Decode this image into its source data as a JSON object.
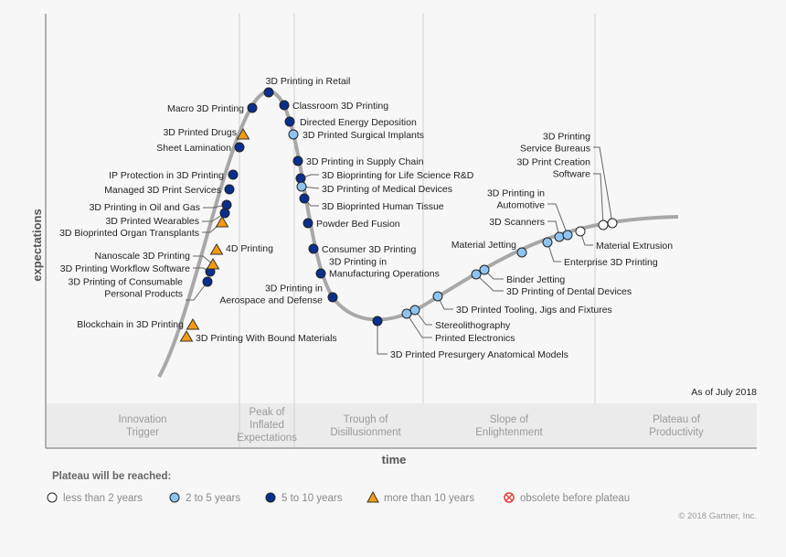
{
  "axis": {
    "y_label": "expectations",
    "x_label": "time"
  },
  "as_of": "As of July 2018",
  "phases": [
    {
      "lines": [
        "Innovation",
        "Trigger"
      ]
    },
    {
      "lines": [
        "Peak of",
        "Inflated",
        "Expectations"
      ]
    },
    {
      "lines": [
        "Trough of",
        "Disillusionment"
      ]
    },
    {
      "lines": [
        "Slope of",
        "Enlightenment"
      ]
    },
    {
      "lines": [
        "Plateau of",
        "Productivity"
      ]
    }
  ],
  "legend": {
    "title": "Plateau will be reached:",
    "items": [
      {
        "label": "less than 2 years",
        "icon": "white-circle"
      },
      {
        "label": "2 to 5 years",
        "icon": "light-blue-circle"
      },
      {
        "label": "5 to 10 years",
        "icon": "dark-blue-circle"
      },
      {
        "label": "more than 10 years",
        "icon": "orange-triangle"
      },
      {
        "label": "obsolete before plateau",
        "icon": "red-x-circle"
      }
    ]
  },
  "copyright": "© 2018 Gartner, Inc.",
  "colors": {
    "lt2": "#ffffff",
    "2to5": "#8fc4f2",
    "5to10": "#0a2f8c",
    "gt10": "#f39c12",
    "obsolete": "#e53935",
    "curve": "#9a9a9a"
  },
  "points": [
    {
      "lines": [
        "3D Printing With Bound Materials"
      ],
      "cat": "gt10"
    },
    {
      "lines": [
        "Blockchain in 3D Printing"
      ],
      "cat": "gt10"
    },
    {
      "lines": [
        "3D Printing of Consumable",
        "Personal Products"
      ],
      "cat": "5to10"
    },
    {
      "lines": [
        "3D Printing Workflow Software"
      ],
      "cat": "5to10"
    },
    {
      "lines": [
        "Nanoscale 3D Printing"
      ],
      "cat": "gt10"
    },
    {
      "lines": [
        "4D Printing"
      ],
      "cat": "gt10"
    },
    {
      "lines": [
        "3D Bioprinted Organ Transplants"
      ],
      "cat": "gt10"
    },
    {
      "lines": [
        "3D Printed Wearables"
      ],
      "cat": "5to10"
    },
    {
      "lines": [
        "3D Printing in Oil and Gas"
      ],
      "cat": "5to10"
    },
    {
      "lines": [
        "Managed 3D Print Services"
      ],
      "cat": "5to10"
    },
    {
      "lines": [
        "IP Protection in 3D Printing"
      ],
      "cat": "5to10"
    },
    {
      "lines": [
        "Sheet Lamination"
      ],
      "cat": "5to10"
    },
    {
      "lines": [
        "3D Printed Drugs"
      ],
      "cat": "gt10"
    },
    {
      "lines": [
        "Macro 3D Printing"
      ],
      "cat": "5to10"
    },
    {
      "lines": [
        "3D Printing in Retail"
      ],
      "cat": "5to10"
    },
    {
      "lines": [
        "Classroom 3D Printing"
      ],
      "cat": "5to10"
    },
    {
      "lines": [
        "Directed Energy Deposition"
      ],
      "cat": "5to10"
    },
    {
      "lines": [
        "3D Printed Surgical Implants"
      ],
      "cat": "2to5"
    },
    {
      "lines": [
        "3D Printing in Supply Chain"
      ],
      "cat": "5to10"
    },
    {
      "lines": [
        "3D Bioprinting for Life Science R&D"
      ],
      "cat": "5to10"
    },
    {
      "lines": [
        "3D Printing of Medical Devices"
      ],
      "cat": "2to5"
    },
    {
      "lines": [
        "3D Bioprinted Human Tissue"
      ],
      "cat": "5to10"
    },
    {
      "lines": [
        "Powder Bed Fusion"
      ],
      "cat": "5to10"
    },
    {
      "lines": [
        "Consumer 3D Printing"
      ],
      "cat": "5to10"
    },
    {
      "lines": [
        "3D Printing in",
        "Manufacturing Operations"
      ],
      "cat": "5to10"
    },
    {
      "lines": [
        "3D Printing in",
        "Aerospace and Defense"
      ],
      "cat": "5to10"
    },
    {
      "lines": [
        "3D Printed Presurgery Anatomical Models"
      ],
      "cat": "5to10"
    },
    {
      "lines": [
        "Printed Electronics"
      ],
      "cat": "2to5"
    },
    {
      "lines": [
        "Stereolithography"
      ],
      "cat": "2to5"
    },
    {
      "lines": [
        "3D Printed Tooling, Jigs and Fixtures"
      ],
      "cat": "2to5"
    },
    {
      "lines": [
        "3D Printing of Dental Devices"
      ],
      "cat": "2to5"
    },
    {
      "lines": [
        "Binder Jetting"
      ],
      "cat": "2to5"
    },
    {
      "lines": [
        "Material Jetting"
      ],
      "cat": "2to5"
    },
    {
      "lines": [
        "Enterprise 3D Printing"
      ],
      "cat": "2to5"
    },
    {
      "lines": [
        "3D Scanners"
      ],
      "cat": "2to5"
    },
    {
      "lines": [
        "3D Printing in",
        "Automotive"
      ],
      "cat": "2to5"
    },
    {
      "lines": [
        "Material Extrusion"
      ],
      "cat": "lt2"
    },
    {
      "lines": [
        "3D Print Creation",
        "Software"
      ],
      "cat": "lt2"
    },
    {
      "lines": [
        "3D Printing",
        "Service Bureaus"
      ],
      "cat": "lt2"
    }
  ]
}
